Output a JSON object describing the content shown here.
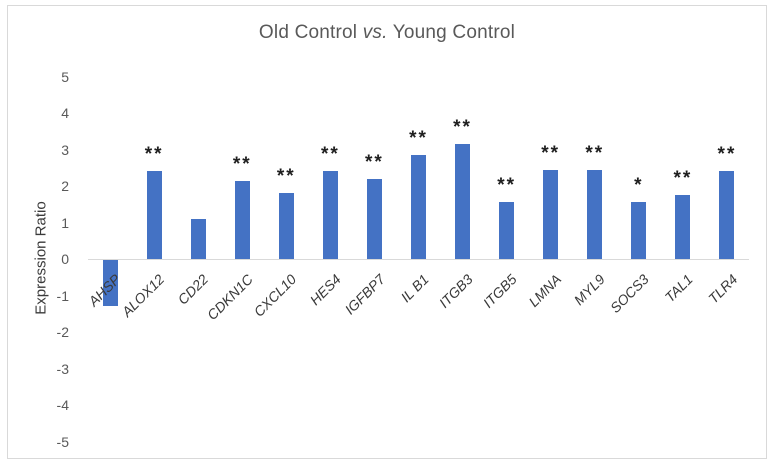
{
  "chart": {
    "title_prefix": "Old Control ",
    "title_italic": "vs.",
    "title_suffix": " Young Control"
  },
  "chart_data": {
    "type": "bar",
    "title": "Old Control vs. Young Control",
    "xlabel": "",
    "ylabel": "Expression Ratio",
    "ylim": [
      -5,
      5
    ],
    "ytick_step": 1,
    "yticks": [
      5,
      4,
      3,
      2,
      1,
      0,
      -1,
      -2,
      -3,
      -4,
      -5
    ],
    "grid": false,
    "legend": "none",
    "bar_color": "#4472C4",
    "axis_line_color": "#d9d9d9",
    "tick_label_color": "#595959",
    "category_label_color": "#3a3a3a",
    "categories": [
      "AHSP",
      "ALOX12",
      "CD22",
      "CDKN1C",
      "CXCL10",
      "HES4",
      "IGFBP7",
      "IL B1",
      "ITGB3",
      "ITGB5",
      "LMNA",
      "MYL9",
      "SOCS3",
      "TAL1",
      "TLR4"
    ],
    "values": [
      -1.25,
      2.4,
      1.1,
      2.15,
      1.8,
      2.4,
      2.2,
      2.85,
      3.15,
      1.55,
      2.45,
      2.45,
      1.55,
      1.75,
      2.4
    ],
    "significance": [
      "",
      "**",
      "",
      "**",
      "**",
      "**",
      "**",
      "**",
      "**",
      "**",
      "**",
      "**",
      "*",
      "**",
      "**"
    ]
  }
}
